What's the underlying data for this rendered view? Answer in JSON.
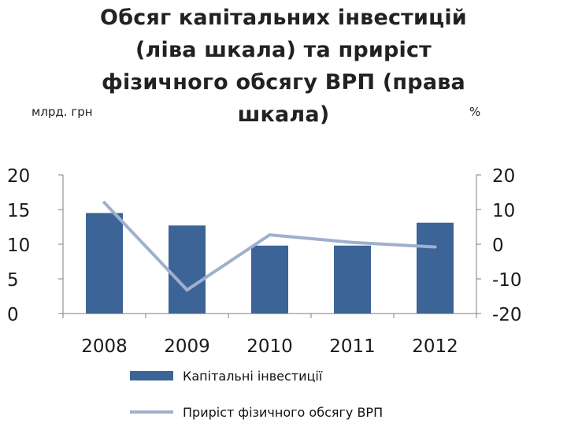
{
  "title_lines": [
    "Обсяг  капітальних інвестицій",
    "(ліва шкала) та приріст",
    "фізичного обсягу ВРП  (права",
    "шкала)"
  ],
  "left_unit": "млрд. грн",
  "right_unit": "%",
  "chart_data": {
    "type": "bar",
    "categories": [
      "2008",
      "2009",
      "2010",
      "2011",
      "2012"
    ],
    "series": [
      {
        "name": "Капітальні інвестиції",
        "type": "bar",
        "axis": "left",
        "values": [
          14.5,
          12.7,
          9.8,
          9.8,
          13.1
        ],
        "color": "#3d6497"
      },
      {
        "name": "Приріст фізичного обсягу ВРП",
        "type": "line",
        "axis": "right",
        "values": [
          12,
          -13.2,
          2.7,
          0.5,
          -0.8
        ],
        "color": "#9fb0cf"
      }
    ],
    "left_axis": {
      "ylim": [
        0,
        20
      ],
      "ticks": [
        "20",
        "15",
        "10",
        "5",
        "0"
      ],
      "tick_values": [
        20,
        15,
        10,
        5,
        0
      ]
    },
    "right_axis": {
      "ylim": [
        -20,
        20
      ],
      "ticks": [
        "20",
        "10",
        "0",
        "-10",
        "-20"
      ],
      "tick_values": [
        20,
        10,
        0,
        -10,
        -20
      ]
    },
    "grid": false,
    "legend_position": "bottom"
  }
}
